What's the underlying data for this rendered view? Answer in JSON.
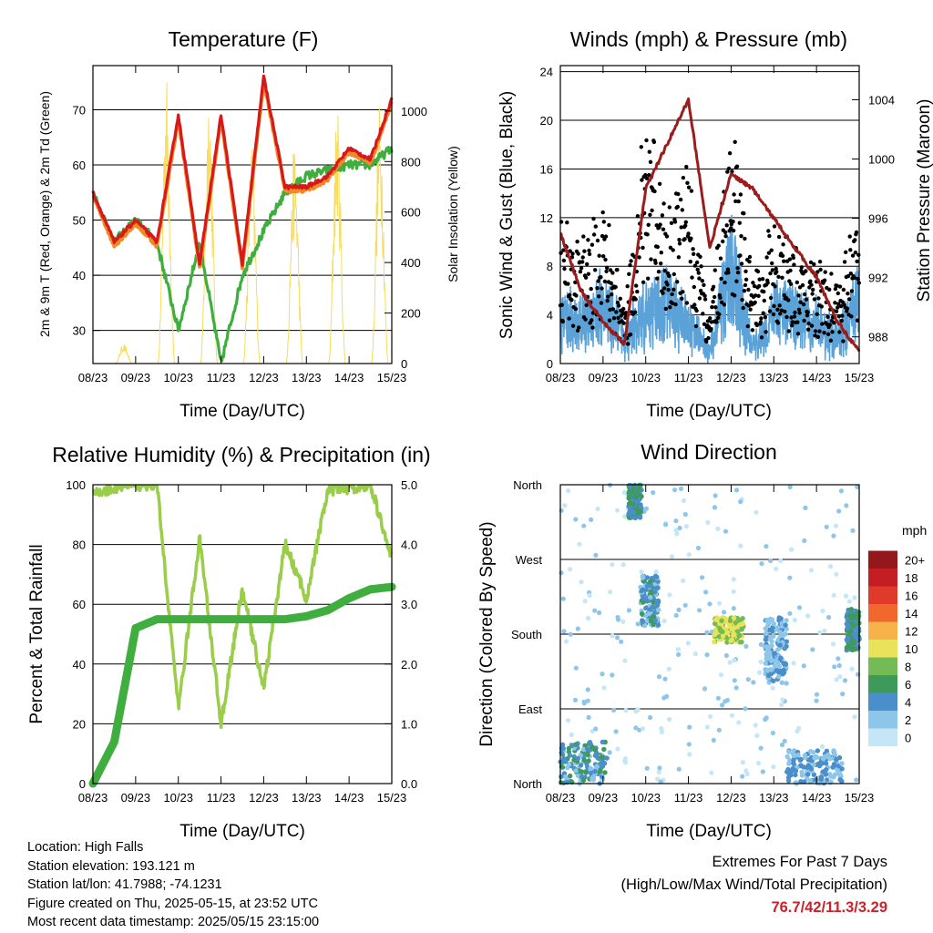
{
  "x_ticks": [
    "08/23",
    "09/23",
    "10/23",
    "11/23",
    "12/23",
    "13/23",
    "14/23",
    "15/23"
  ],
  "colors": {
    "temp2m": "#d7191c",
    "temp9m": "#f08a24",
    "dew": "#3fae3f",
    "solar": "#f7dc5c",
    "wind": "#5aa2d8",
    "gust": "#000000",
    "pressure": "#9b1c1c",
    "rh": "#9acd4a",
    "precip": "#3fae3f"
  },
  "panels": {
    "temperature": {
      "title": "Temperature (F)",
      "xlabel": "Time (Day/UTC)",
      "ylabel_left": "2m & 9m T (Red, Orange) & 2m Td (Green)",
      "ylabel_right": "Solar Insolation (Yellow)",
      "left_ticks": [
        "30",
        "40",
        "50",
        "60",
        "70"
      ],
      "right_ticks": [
        "0",
        "200",
        "400",
        "600",
        "800",
        "1000"
      ]
    },
    "winds": {
      "title": "Winds (mph) & Pressure (mb)",
      "xlabel": "Time (Day/UTC)",
      "ylabel_left": "Sonic Wind & Gust (Blue, Black)",
      "ylabel_right": "Station Pressure (Maroon)",
      "left_ticks": [
        "0",
        "4",
        "8",
        "12",
        "16",
        "20",
        "24"
      ],
      "right_ticks": [
        "988",
        "992",
        "996",
        "1000",
        "1004"
      ]
    },
    "humidity": {
      "title": "Relative Humidity (%) & Precipitation (in)",
      "xlabel": "Time (Day/UTC)",
      "ylabel_left": "Percent & Total Rainfall",
      "left_ticks": [
        "0",
        "20",
        "40",
        "60",
        "80",
        "100"
      ],
      "right_ticks": [
        "0.0",
        "1.0",
        "2.0",
        "3.0",
        "4.0",
        "5.0"
      ]
    },
    "direction": {
      "title": "Wind Direction",
      "xlabel": "Time (Day/UTC)",
      "ylabel_left": "Direction (Colored By Speed)",
      "left_ticks": [
        "North",
        "East",
        "South",
        "West",
        "North"
      ],
      "legend_title": "mph",
      "legend_labels": [
        "0",
        "2",
        "4",
        "6",
        "8",
        "10",
        "12",
        "14",
        "16",
        "18",
        "20+"
      ],
      "legend_colors": [
        "#c4e6f7",
        "#8ec6ea",
        "#4a8fcb",
        "#3e9a5a",
        "#74bb55",
        "#e8e35a",
        "#f7b24a",
        "#f0682c",
        "#e03a2b",
        "#c41d24",
        "#94171b"
      ]
    }
  },
  "chart_data": [
    {
      "type": "line",
      "title": "Temperature (F)",
      "xlabel": "Time (Day/UTC)",
      "ylim": [
        24,
        78
      ],
      "y2lim": [
        0,
        1180
      ],
      "x": [
        8,
        8.5,
        9,
        9.5,
        10,
        10.5,
        11,
        11.5,
        12,
        12.5,
        13,
        13.5,
        14,
        14.5,
        15
      ],
      "series": [
        {
          "name": "2m T",
          "values": [
            55,
            46,
            50,
            46,
            69,
            42,
            69,
            42,
            76,
            56,
            56,
            58,
            63,
            61,
            72
          ]
        },
        {
          "name": "2m Td",
          "values": [
            55,
            46,
            50,
            46,
            30,
            46,
            24,
            40,
            48,
            55,
            58,
            59,
            60,
            60,
            63
          ]
        }
      ],
      "solar_peak_wm2": [
        80,
        1150,
        1120,
        900,
        880,
        1020,
        1040,
        1050
      ]
    },
    {
      "type": "line",
      "title": "Winds (mph) & Pressure (mb)",
      "xlabel": "Time (Day/UTC)",
      "ylim": [
        0,
        24.5
      ],
      "y2lim": [
        986.2,
        1006.3
      ],
      "x": [
        8,
        8.5,
        9,
        9.5,
        10,
        10.5,
        11,
        11.5,
        12,
        12.5,
        13,
        13.5,
        14,
        14.5,
        15
      ],
      "series": [
        {
          "name": "Sonic Wind",
          "values": [
            4,
            3,
            5,
            2,
            4,
            5,
            3,
            1,
            8,
            1,
            4,
            4,
            3,
            2,
            5
          ]
        },
        {
          "name": "Gust",
          "values": [
            10,
            8,
            12,
            4,
            18,
            12,
            14,
            3,
            18,
            6,
            10,
            8,
            7,
            6,
            11
          ]
        },
        {
          "name": "Station Pressure",
          "values": [
            995,
            991,
            989,
            987.5,
            998,
            1001,
            1004,
            994,
            999,
            998,
            996,
            994,
            992,
            989,
            987
          ]
        }
      ]
    },
    {
      "type": "line",
      "title": "Relative Humidity (%) & Precipitation (in)",
      "xlabel": "Time (Day/UTC)",
      "ylim": [
        0,
        100
      ],
      "y2lim": [
        0,
        5
      ],
      "x": [
        8,
        8.5,
        9,
        9.5,
        10,
        10.5,
        11,
        11.5,
        12,
        12.5,
        13,
        13.5,
        14,
        14.5,
        15
      ],
      "series": [
        {
          "name": "Relative Humidity",
          "values": [
            97,
            99,
            100,
            100,
            25,
            82,
            20,
            65,
            32,
            80,
            62,
            98,
            99,
            100,
            75
          ]
        },
        {
          "name": "Total Precipitation",
          "values": [
            0,
            0.7,
            2.6,
            2.75,
            2.75,
            2.75,
            2.75,
            2.75,
            2.75,
            2.75,
            2.8,
            2.9,
            3.1,
            3.25,
            3.29
          ]
        }
      ]
    },
    {
      "type": "scatter",
      "title": "Wind Direction",
      "xlabel": "Time (Day/UTC)",
      "y_categories": [
        "North",
        "East",
        "South",
        "West",
        "North"
      ],
      "ylim": [
        0,
        360
      ],
      "clusters": [
        {
          "x_range": [
            8,
            9.1
          ],
          "dir_range": [
            0,
            50
          ],
          "speed": 4
        },
        {
          "x_range": [
            9.6,
            9.9
          ],
          "dir_range": [
            320,
            360
          ],
          "speed": 5
        },
        {
          "x_range": [
            9.9,
            10.3
          ],
          "dir_range": [
            190,
            250
          ],
          "speed": 4
        },
        {
          "x_range": [
            11.6,
            12.3
          ],
          "dir_range": [
            170,
            200
          ],
          "speed": 9
        },
        {
          "x_range": [
            12.8,
            13.3
          ],
          "dir_range": [
            120,
            200
          ],
          "speed": 3
        },
        {
          "x_range": [
            13.3,
            14.6
          ],
          "dir_range": [
            0,
            40
          ],
          "speed": 3
        },
        {
          "x_range": [
            14.7,
            15
          ],
          "dir_range": [
            160,
            210
          ],
          "speed": 5
        }
      ]
    }
  ],
  "info": {
    "location": "Location: High Falls",
    "elevation": "Station elevation: 193.121 m",
    "latlon": "Station lat/lon: 41.7988; -74.1231",
    "created": "Figure created on Thu, 2025-05-15, at 23:52 UTC",
    "recent": "Most recent data timestamp: 2025/05/15 23:15:00"
  },
  "extremes": {
    "line1": "Extremes For Past 7 Days",
    "line2": "(High/Low/Max Wind/Total Precipitation)",
    "values": "76.7/42/11.3/3.29"
  }
}
